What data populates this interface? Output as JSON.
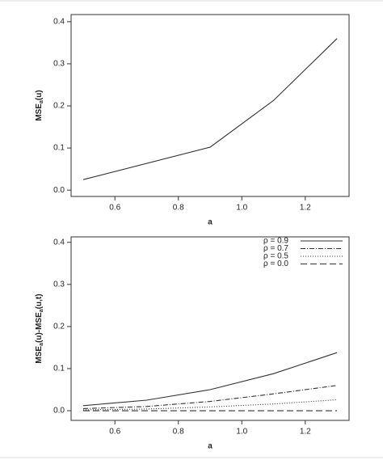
{
  "chart_data": [
    {
      "type": "line",
      "xlabel": "a",
      "ylabel": [
        {
          "text": "MSE"
        },
        {
          "text": "a",
          "sub": true
        },
        {
          "text": "(u)"
        }
      ],
      "x": [
        0.5,
        0.9,
        1.1,
        1.3
      ],
      "series": [
        {
          "color": "#333333",
          "linestyle": "solid",
          "values": [
            0.025,
            0.102,
            0.213,
            0.36
          ]
        }
      ],
      "xlim": [
        0.462,
        1.338
      ],
      "xticks": [
        0.6,
        0.8,
        {
          "value": 1.0,
          "label": "1.0"
        },
        1.2
      ],
      "ylim": [
        -0.015,
        0.417
      ],
      "yticks": [
        {
          "value": 0,
          "label": "0.0"
        },
        0.1,
        0.2,
        0.3,
        0.4
      ]
    },
    {
      "type": "line",
      "xlabel": "a",
      "ylabel": [
        {
          "text": "MSE"
        },
        {
          "text": "a",
          "sub": true
        },
        {
          "text": "(u)-MSE"
        },
        {
          "text": "a",
          "sub": true
        },
        {
          "text": "(u,t)"
        }
      ],
      "x": [
        0.5,
        0.7,
        0.9,
        1.1,
        1.3
      ],
      "series": [
        {
          "name": "ρ = 0.9",
          "color": "#333333",
          "linestyle": "solid",
          "values": [
            0.012,
            0.025,
            0.05,
            0.088,
            0.138
          ]
        },
        {
          "name": "ρ = 0.7",
          "color": "#333333",
          "linestyle": "dashdot",
          "values": [
            0.005,
            0.01,
            0.022,
            0.04,
            0.06
          ]
        },
        {
          "name": "ρ = 0.5",
          "color": "#333333",
          "linestyle": "dotted",
          "values": [
            0.002,
            0.004,
            0.009,
            0.016,
            0.026
          ]
        },
        {
          "name": "ρ = 0.0",
          "color": "#333333",
          "linestyle": "dashed",
          "values": [
            0,
            0,
            0,
            0,
            0
          ]
        }
      ],
      "legend": "top-right",
      "xlim": [
        0.462,
        1.338
      ],
      "xticks": [
        0.6,
        0.8,
        {
          "value": 1.0,
          "label": "1.0"
        },
        1.2
      ],
      "ylim": [
        -0.023,
        0.413
      ],
      "yticks": [
        {
          "value": 0,
          "label": "0.0"
        },
        0.1,
        0.2,
        0.3,
        0.4
      ]
    }
  ]
}
